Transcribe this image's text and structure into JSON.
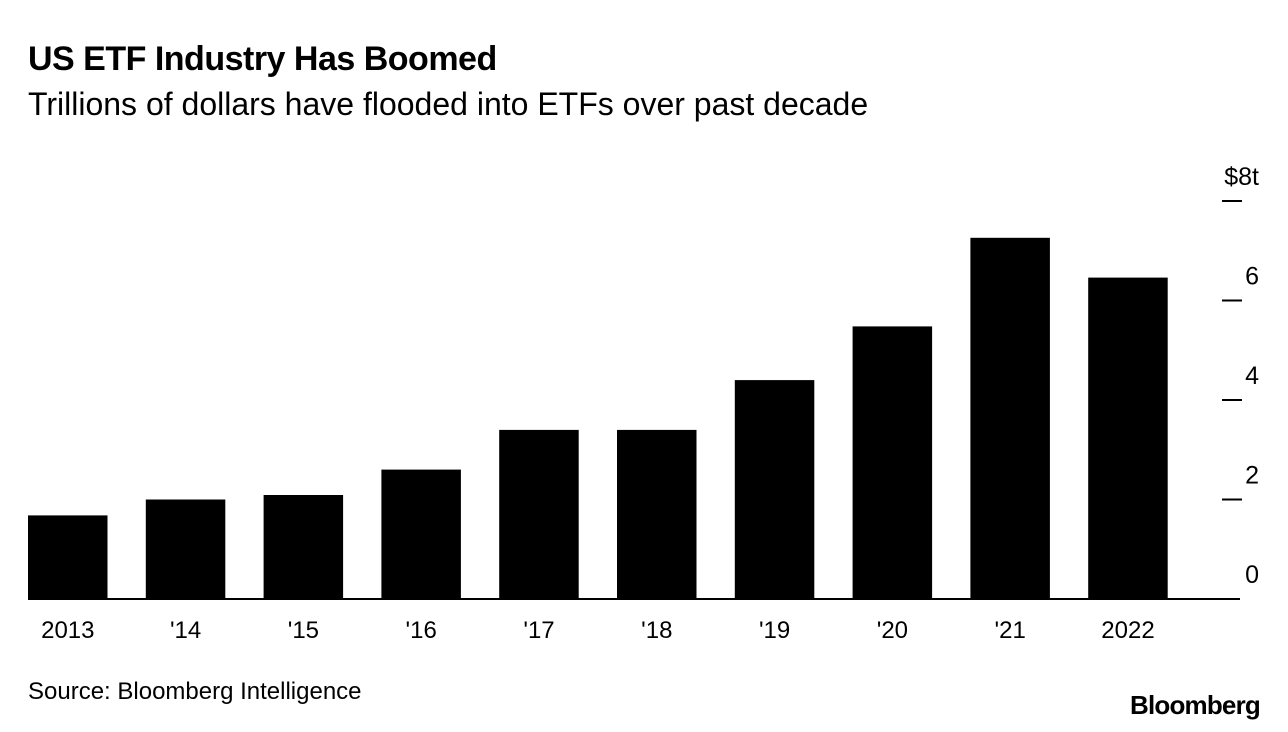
{
  "chart_data": {
    "type": "bar",
    "title": "US ETF Industry Has Boomed",
    "subtitle": "Trillions of dollars have flooded into ETFs over past decade",
    "categories": [
      "2013",
      "'14",
      "'15",
      "'16",
      "'17",
      "'18",
      "'19",
      "'20",
      "'21",
      "2022"
    ],
    "values": [
      1.68,
      2.0,
      2.09,
      2.6,
      3.4,
      3.4,
      4.4,
      5.48,
      7.26,
      6.46
    ],
    "ylim": [
      0,
      8
    ],
    "yticks": [
      0,
      2,
      4,
      6,
      8
    ],
    "ytick_labels": [
      "0",
      "2",
      "4",
      "6",
      "$8t"
    ],
    "xlabel": "",
    "ylabel": "",
    "axis_position": "right",
    "bar_color": "#000000",
    "grid": false,
    "legend": "none"
  },
  "footer": {
    "source": "Source: Bloomberg Intelligence",
    "brand": "Bloomberg"
  }
}
